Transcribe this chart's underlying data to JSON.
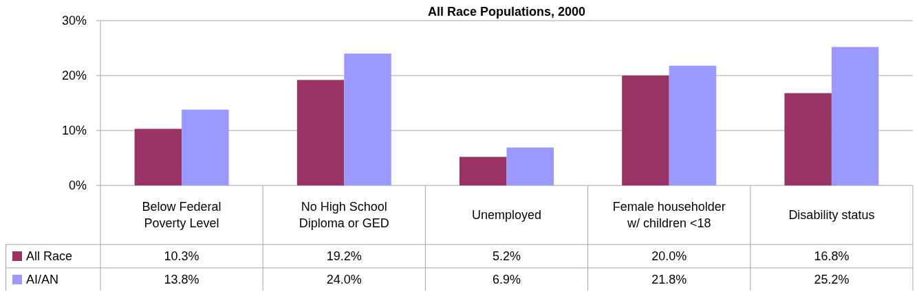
{
  "chart_data": {
    "type": "bar",
    "title": "All Race Populations, 2000",
    "categories": [
      "Below Federal Poverty Level",
      "No High School Diploma or GED",
      "Unemployed",
      "Female householder w/ children <18",
      "Disability status"
    ],
    "series": [
      {
        "name": "All Race",
        "color": "#993366",
        "values": [
          10.3,
          19.2,
          5.2,
          20.0,
          16.8
        ],
        "value_labels": [
          "10.3%",
          "19.2%",
          "5.2%",
          "20.0%",
          "16.8%"
        ]
      },
      {
        "name": "AI/AN",
        "color": "#9999ff",
        "values": [
          13.8,
          24.0,
          6.9,
          21.8,
          25.2
        ],
        "value_labels": [
          "13.8%",
          "24.0%",
          "6.9%",
          "21.8%",
          "25.2%"
        ]
      }
    ],
    "ylim": [
      0,
      30
    ],
    "yticks": [
      {
        "value": 0,
        "label": "0%"
      },
      {
        "value": 10,
        "label": "10%"
      },
      {
        "value": 20,
        "label": "20%"
      },
      {
        "value": 30,
        "label": "30%"
      }
    ],
    "grid": "y",
    "legend": "bottom"
  }
}
